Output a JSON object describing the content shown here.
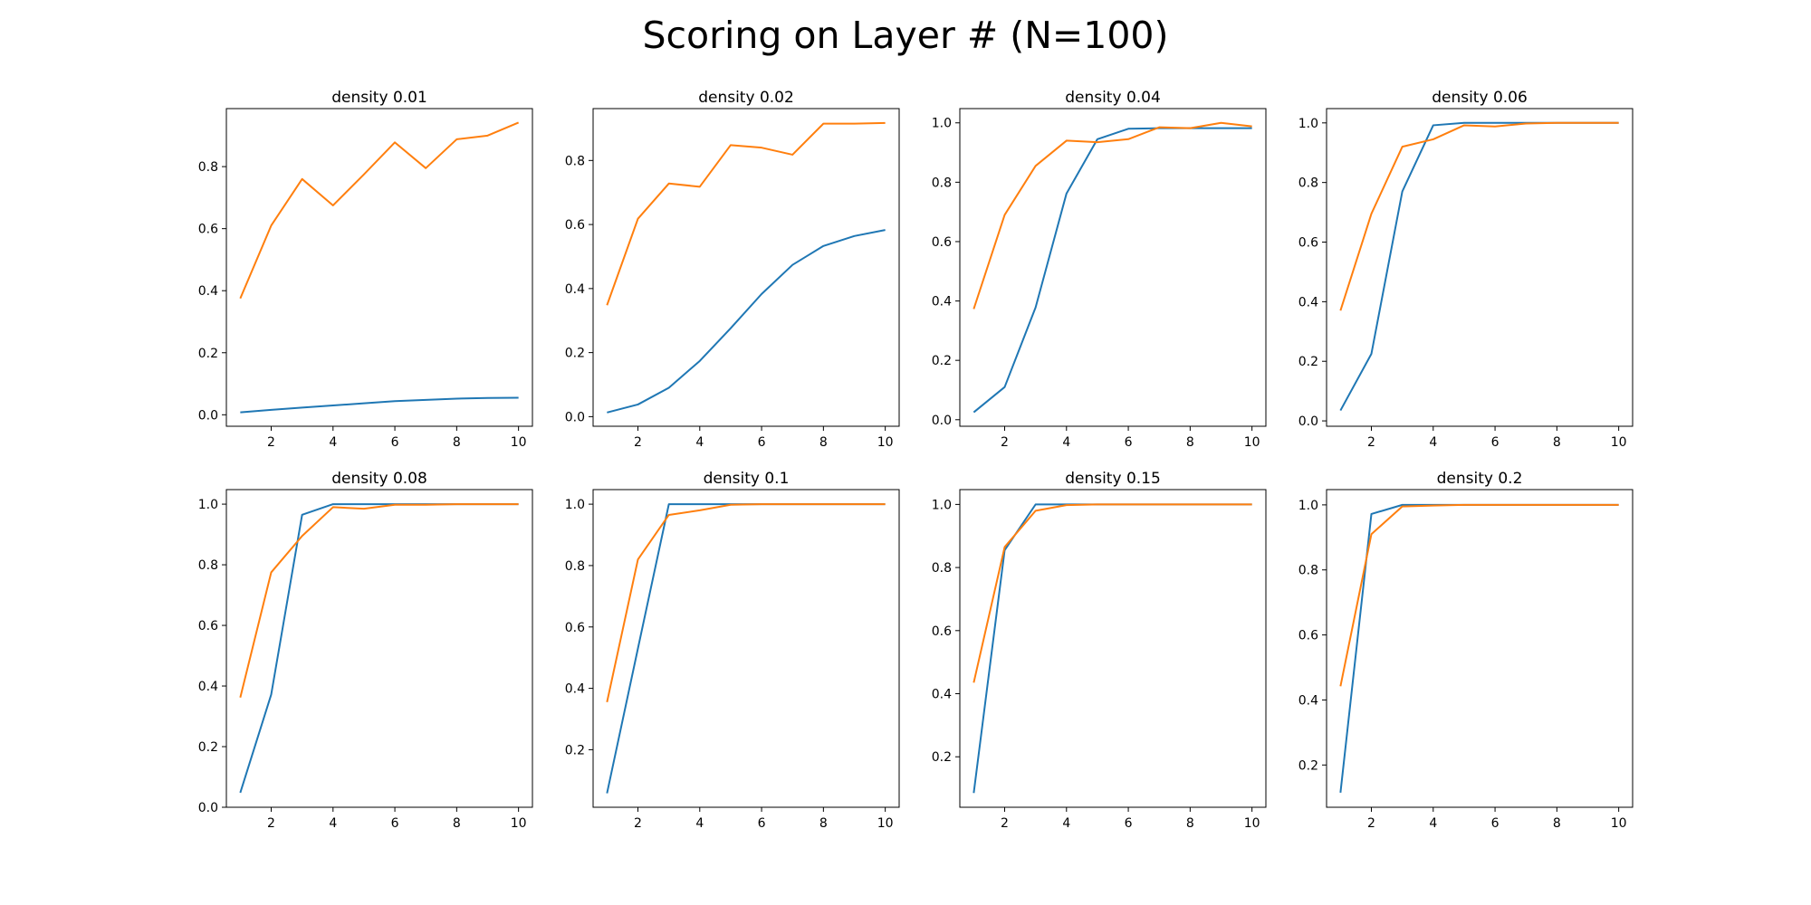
{
  "figure": {
    "title": "Scoring on Layer # (N=100)"
  },
  "colors": {
    "series_1": "#1f77b4",
    "series_2": "#ff7f0e",
    "axes": "#000000",
    "background": "#ffffff"
  },
  "chart_data": [
    {
      "type": "line",
      "title": "density 0.01",
      "x": [
        1,
        2,
        3,
        4,
        5,
        6,
        7,
        8,
        9,
        10
      ],
      "xticks": [
        2,
        4,
        6,
        8,
        10
      ],
      "xlim": [
        0.55,
        10.45
      ],
      "ylim": [
        -0.037,
        0.987
      ],
      "yticks": [
        0.0,
        0.2,
        0.4,
        0.6,
        0.8
      ],
      "ytick_labels": [
        "0.0",
        "0.2",
        "0.4",
        "0.6",
        "0.8"
      ],
      "grid": false,
      "series": [
        {
          "values": [
            0.008,
            0.016,
            0.023,
            0.03,
            0.037,
            0.044,
            0.048,
            0.052,
            0.054,
            0.055
          ]
        },
        {
          "values": [
            0.375,
            0.61,
            0.76,
            0.675,
            0.775,
            0.878,
            0.795,
            0.888,
            0.9,
            0.942
          ]
        }
      ]
    },
    {
      "type": "line",
      "title": "density 0.02",
      "x": [
        1,
        2,
        3,
        4,
        5,
        6,
        7,
        8,
        9,
        10
      ],
      "xticks": [
        2,
        4,
        6,
        8,
        10
      ],
      "xlim": [
        0.55,
        10.45
      ],
      "ylim": [
        -0.03,
        0.962
      ],
      "yticks": [
        0.0,
        0.2,
        0.4,
        0.6,
        0.8
      ],
      "ytick_labels": [
        "0.0",
        "0.2",
        "0.4",
        "0.6",
        "0.8"
      ],
      "grid": false,
      "series": [
        {
          "values": [
            0.013,
            0.038,
            0.09,
            0.174,
            0.276,
            0.383,
            0.474,
            0.533,
            0.564,
            0.583
          ]
        },
        {
          "values": [
            0.348,
            0.618,
            0.728,
            0.718,
            0.848,
            0.84,
            0.818,
            0.915,
            0.915,
            0.917
          ]
        }
      ]
    },
    {
      "type": "line",
      "title": "density 0.04",
      "x": [
        1,
        2,
        3,
        4,
        5,
        6,
        7,
        8,
        9,
        10
      ],
      "xticks": [
        2,
        4,
        6,
        8,
        10
      ],
      "xlim": [
        0.55,
        10.45
      ],
      "ylim": [
        -0.022,
        1.048
      ],
      "yticks": [
        0.0,
        0.2,
        0.4,
        0.6,
        0.8,
        1.0
      ],
      "ytick_labels": [
        "0.0",
        "0.2",
        "0.4",
        "0.6",
        "0.8",
        "1.0"
      ],
      "grid": false,
      "series": [
        {
          "values": [
            0.025,
            0.11,
            0.378,
            0.762,
            0.945,
            0.98,
            0.982,
            0.982,
            0.982,
            0.982
          ]
        },
        {
          "values": [
            0.373,
            0.69,
            0.855,
            0.94,
            0.935,
            0.945,
            0.985,
            0.982,
            1.0,
            0.988
          ]
        }
      ]
    },
    {
      "type": "line",
      "title": "density 0.06",
      "x": [
        1,
        2,
        3,
        4,
        5,
        6,
        7,
        8,
        9,
        10
      ],
      "xticks": [
        2,
        4,
        6,
        8,
        10
      ],
      "xlim": [
        0.55,
        10.45
      ],
      "ylim": [
        -0.018,
        1.048
      ],
      "yticks": [
        0.0,
        0.2,
        0.4,
        0.6,
        0.8,
        1.0
      ],
      "ytick_labels": [
        "0.0",
        "0.2",
        "0.4",
        "0.6",
        "0.8",
        "1.0"
      ],
      "grid": false,
      "series": [
        {
          "values": [
            0.035,
            0.225,
            0.77,
            0.992,
            1.0,
            1.0,
            1.0,
            1.0,
            1.0,
            1.0
          ]
        },
        {
          "values": [
            0.37,
            0.695,
            0.92,
            0.945,
            0.992,
            0.988,
            0.998,
            1.0,
            1.0,
            1.0
          ]
        }
      ]
    },
    {
      "type": "line",
      "title": "density 0.08",
      "x": [
        1,
        2,
        3,
        4,
        5,
        6,
        7,
        8,
        9,
        10
      ],
      "xticks": [
        2,
        4,
        6,
        8,
        10
      ],
      "xlim": [
        0.55,
        10.45
      ],
      "ylim": [
        0.0,
        1.048
      ],
      "yticks": [
        0.0,
        0.2,
        0.4,
        0.6,
        0.8,
        1.0
      ],
      "ytick_labels": [
        "0.0",
        "0.2",
        "0.4",
        "0.6",
        "0.8",
        "1.0"
      ],
      "grid": false,
      "series": [
        {
          "values": [
            0.048,
            0.372,
            0.965,
            1.0,
            1.0,
            1.0,
            1.0,
            1.0,
            1.0,
            1.0
          ]
        },
        {
          "values": [
            0.362,
            0.775,
            0.895,
            0.99,
            0.985,
            0.998,
            0.998,
            1.0,
            1.0,
            1.0
          ]
        }
      ]
    },
    {
      "type": "line",
      "title": "density 0.1",
      "x": [
        1,
        2,
        3,
        4,
        5,
        6,
        7,
        8,
        9,
        10
      ],
      "xticks": [
        2,
        4,
        6,
        8,
        10
      ],
      "xlim": [
        0.55,
        10.45
      ],
      "ylim": [
        0.0125,
        1.0475
      ],
      "yticks": [
        0.2,
        0.4,
        0.6,
        0.8,
        1.0
      ],
      "ytick_labels": [
        "0.2",
        "0.4",
        "0.6",
        "0.8",
        "1.0"
      ],
      "grid": false,
      "series": [
        {
          "values": [
            0.058,
            0.53,
            1.0,
            1.0,
            1.0,
            1.0,
            1.0,
            1.0,
            1.0,
            1.0
          ]
        },
        {
          "values": [
            0.355,
            0.82,
            0.965,
            0.98,
            0.998,
            1.0,
            1.0,
            1.0,
            1.0,
            1.0
          ]
        }
      ]
    },
    {
      "type": "line",
      "title": "density 0.15",
      "x": [
        1,
        2,
        3,
        4,
        5,
        6,
        7,
        8,
        9,
        10
      ],
      "xticks": [
        2,
        4,
        6,
        8,
        10
      ],
      "xlim": [
        0.55,
        10.45
      ],
      "ylim": [
        0.04,
        1.047
      ],
      "yticks": [
        0.2,
        0.4,
        0.6,
        0.8,
        1.0
      ],
      "ytick_labels": [
        "0.2",
        "0.4",
        "0.6",
        "0.8",
        "1.0"
      ],
      "grid": false,
      "series": [
        {
          "values": [
            0.085,
            0.855,
            1.0,
            1.0,
            1.0,
            1.0,
            1.0,
            1.0,
            1.0,
            1.0
          ]
        },
        {
          "values": [
            0.435,
            0.865,
            0.98,
            0.998,
            1.0,
            1.0,
            1.0,
            1.0,
            1.0,
            1.0
          ]
        }
      ]
    },
    {
      "type": "line",
      "title": "density 0.2",
      "x": [
        1,
        2,
        3,
        4,
        5,
        6,
        7,
        8,
        9,
        10
      ],
      "xticks": [
        2,
        4,
        6,
        8,
        10
      ],
      "xlim": [
        0.55,
        10.45
      ],
      "ylim": [
        0.07,
        1.047
      ],
      "yticks": [
        0.2,
        0.4,
        0.6,
        0.8,
        1.0
      ],
      "ytick_labels": [
        "0.2",
        "0.4",
        "0.6",
        "0.8",
        "1.0"
      ],
      "grid": false,
      "series": [
        {
          "values": [
            0.115,
            0.972,
            1.0,
            1.0,
            1.0,
            1.0,
            1.0,
            1.0,
            1.0,
            1.0
          ]
        },
        {
          "values": [
            0.442,
            0.91,
            0.995,
            0.998,
            1.0,
            1.0,
            1.0,
            1.0,
            1.0,
            1.0
          ]
        }
      ]
    }
  ]
}
